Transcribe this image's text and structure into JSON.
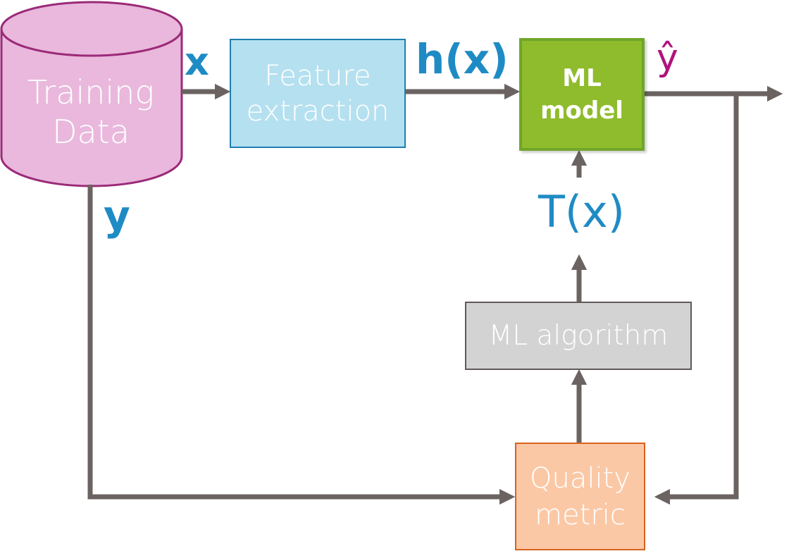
{
  "nodes": {
    "training_data": "Training\nData",
    "feature_extraction": "Feature\nextraction",
    "ml_model": "ML\nmodel",
    "ml_algorithm": "ML algorithm",
    "quality_metric": "Quality\nmetric"
  },
  "edge_labels": {
    "x": "x",
    "h_x": "h(x)",
    "y_hat": "ŷ",
    "y": "y",
    "t_x": "T(x)"
  },
  "colors": {
    "training_fill": "#e9b8dc",
    "training_stroke": "#9b2a78",
    "feature_fill": "#b5e0ef",
    "model_fill": "#8fbc2c",
    "algorithm_fill": "#d3d3d3",
    "quality_fill": "#fbc8a6",
    "wire": "#6b6361",
    "label_blue": "#1f8bc4",
    "label_magenta": "#b0127c"
  }
}
